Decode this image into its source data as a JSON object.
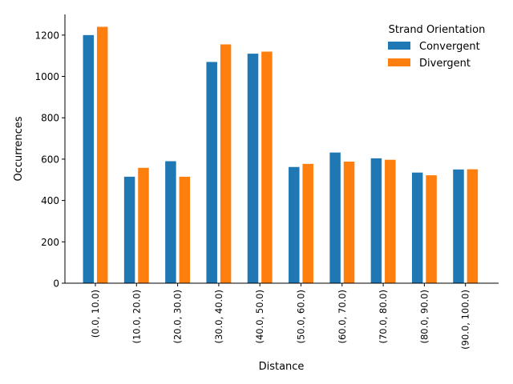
{
  "chart_data": {
    "type": "bar",
    "xlabel": "Distance",
    "ylabel": "Occurrences",
    "ylim": [
      0,
      1300
    ],
    "yticks": [
      0,
      200,
      400,
      600,
      800,
      1000,
      1200
    ],
    "grid": false,
    "legend": {
      "title": "Strand Orientation",
      "placement": "top-right"
    },
    "categories": [
      "(0.0, 10.0)",
      "(10.0, 20.0)",
      "(20.0, 30.0)",
      "(30.0, 40.0)",
      "(40.0, 50.0)",
      "(50.0, 60.0)",
      "(60.0, 70.0)",
      "(70.0, 80.0)",
      "(80.0, 90.0)",
      "(90.0, 100.0)"
    ],
    "series": [
      {
        "name": "Convergent",
        "color": "#1f77b4",
        "values": [
          1200,
          515,
          590,
          1070,
          1110,
          562,
          632,
          604,
          535,
          550
        ]
      },
      {
        "name": "Divergent",
        "color": "#ff7f0e",
        "values": [
          1240,
          558,
          515,
          1155,
          1120,
          577,
          588,
          597,
          522,
          551
        ]
      }
    ]
  }
}
